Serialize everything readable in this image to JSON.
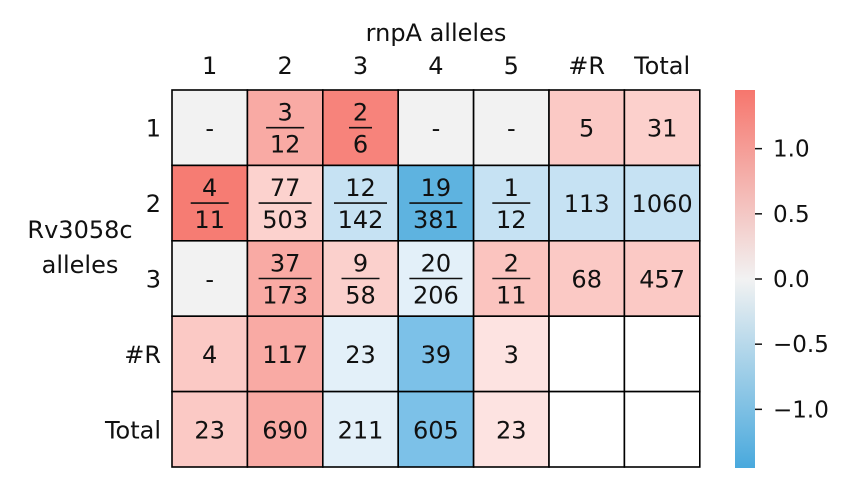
{
  "chart_data": {
    "type": "heatmap",
    "top_label": "rnpA alleles",
    "left_label_line1": "Rv3058c",
    "left_label_line2": "alleles",
    "col_labels": [
      "1",
      "2",
      "3",
      "4",
      "5",
      "#R",
      "Total"
    ],
    "row_labels": [
      "1",
      "2",
      "3",
      "#R",
      "Total"
    ],
    "cells": [
      [
        {
          "text": "-",
          "color": "#f2f2f2"
        },
        {
          "num": "3",
          "den": "12",
          "color": "#f9aaa4"
        },
        {
          "num": "2",
          "den": "6",
          "color": "#f7837b"
        },
        {
          "text": "-",
          "color": "#f2f2f2"
        },
        {
          "text": "-",
          "color": "#f2f2f2"
        },
        {
          "text": "5",
          "color": "#fbc9c5"
        },
        {
          "text": "31",
          "color": "#fcd0cc"
        }
      ],
      [
        {
          "num": "4",
          "den": "11",
          "color": "#f67c73"
        },
        {
          "num": "77",
          "den": "503",
          "color": "#fcd2ce"
        },
        {
          "num": "12",
          "den": "142",
          "color": "#c6e2f3"
        },
        {
          "num": "19",
          "den": "381",
          "color": "#5eb3e0"
        },
        {
          "num": "1",
          "den": "12",
          "color": "#c6e2f3"
        },
        {
          "text": "113",
          "color": "#c6e2f3"
        },
        {
          "text": "1060",
          "color": "#c6e2f3"
        }
      ],
      [
        {
          "text": "-",
          "color": "#f2f2f2"
        },
        {
          "num": "37",
          "den": "173",
          "color": "#f9aaa4"
        },
        {
          "num": "9",
          "den": "58",
          "color": "#fbd0cc"
        },
        {
          "num": "20",
          "den": "206",
          "color": "#e3f0f9"
        },
        {
          "num": "2",
          "den": "11",
          "color": "#fbc4bf"
        },
        {
          "text": "68",
          "color": "#fbc9c5"
        },
        {
          "text": "457",
          "color": "#fbc9c5"
        }
      ],
      [
        {
          "text": "4",
          "color": "#fbc9c5"
        },
        {
          "text": "117",
          "color": "#f9aaa4"
        },
        {
          "text": "23",
          "color": "#e3f0f9"
        },
        {
          "text": "39",
          "color": "#7cc1e8"
        },
        {
          "text": "3",
          "color": "#fde3e1"
        },
        {
          "text": "",
          "color": "#ffffff"
        },
        {
          "text": "",
          "color": "#ffffff"
        }
      ],
      [
        {
          "text": "23",
          "color": "#fbc9c5"
        },
        {
          "text": "690",
          "color": "#f9aaa4"
        },
        {
          "text": "211",
          "color": "#e3f0f9"
        },
        {
          "text": "605",
          "color": "#7cc1e8"
        },
        {
          "text": "23",
          "color": "#fde3e1"
        },
        {
          "text": "",
          "color": "#ffffff"
        },
        {
          "text": "",
          "color": "#ffffff"
        }
      ]
    ],
    "colorbar": {
      "min": -1.45,
      "max": 1.45,
      "low_color": "#49a9dd",
      "mid_color": "#f2f2f2",
      "high_color": "#f6766d",
      "ticks": [
        {
          "value": 1.0,
          "label": "1.0"
        },
        {
          "value": 0.5,
          "label": "0.5"
        },
        {
          "value": 0.0,
          "label": "0.0"
        },
        {
          "value": -0.5,
          "label": "−0.5"
        },
        {
          "value": -1.0,
          "label": "−1.0"
        }
      ]
    }
  }
}
